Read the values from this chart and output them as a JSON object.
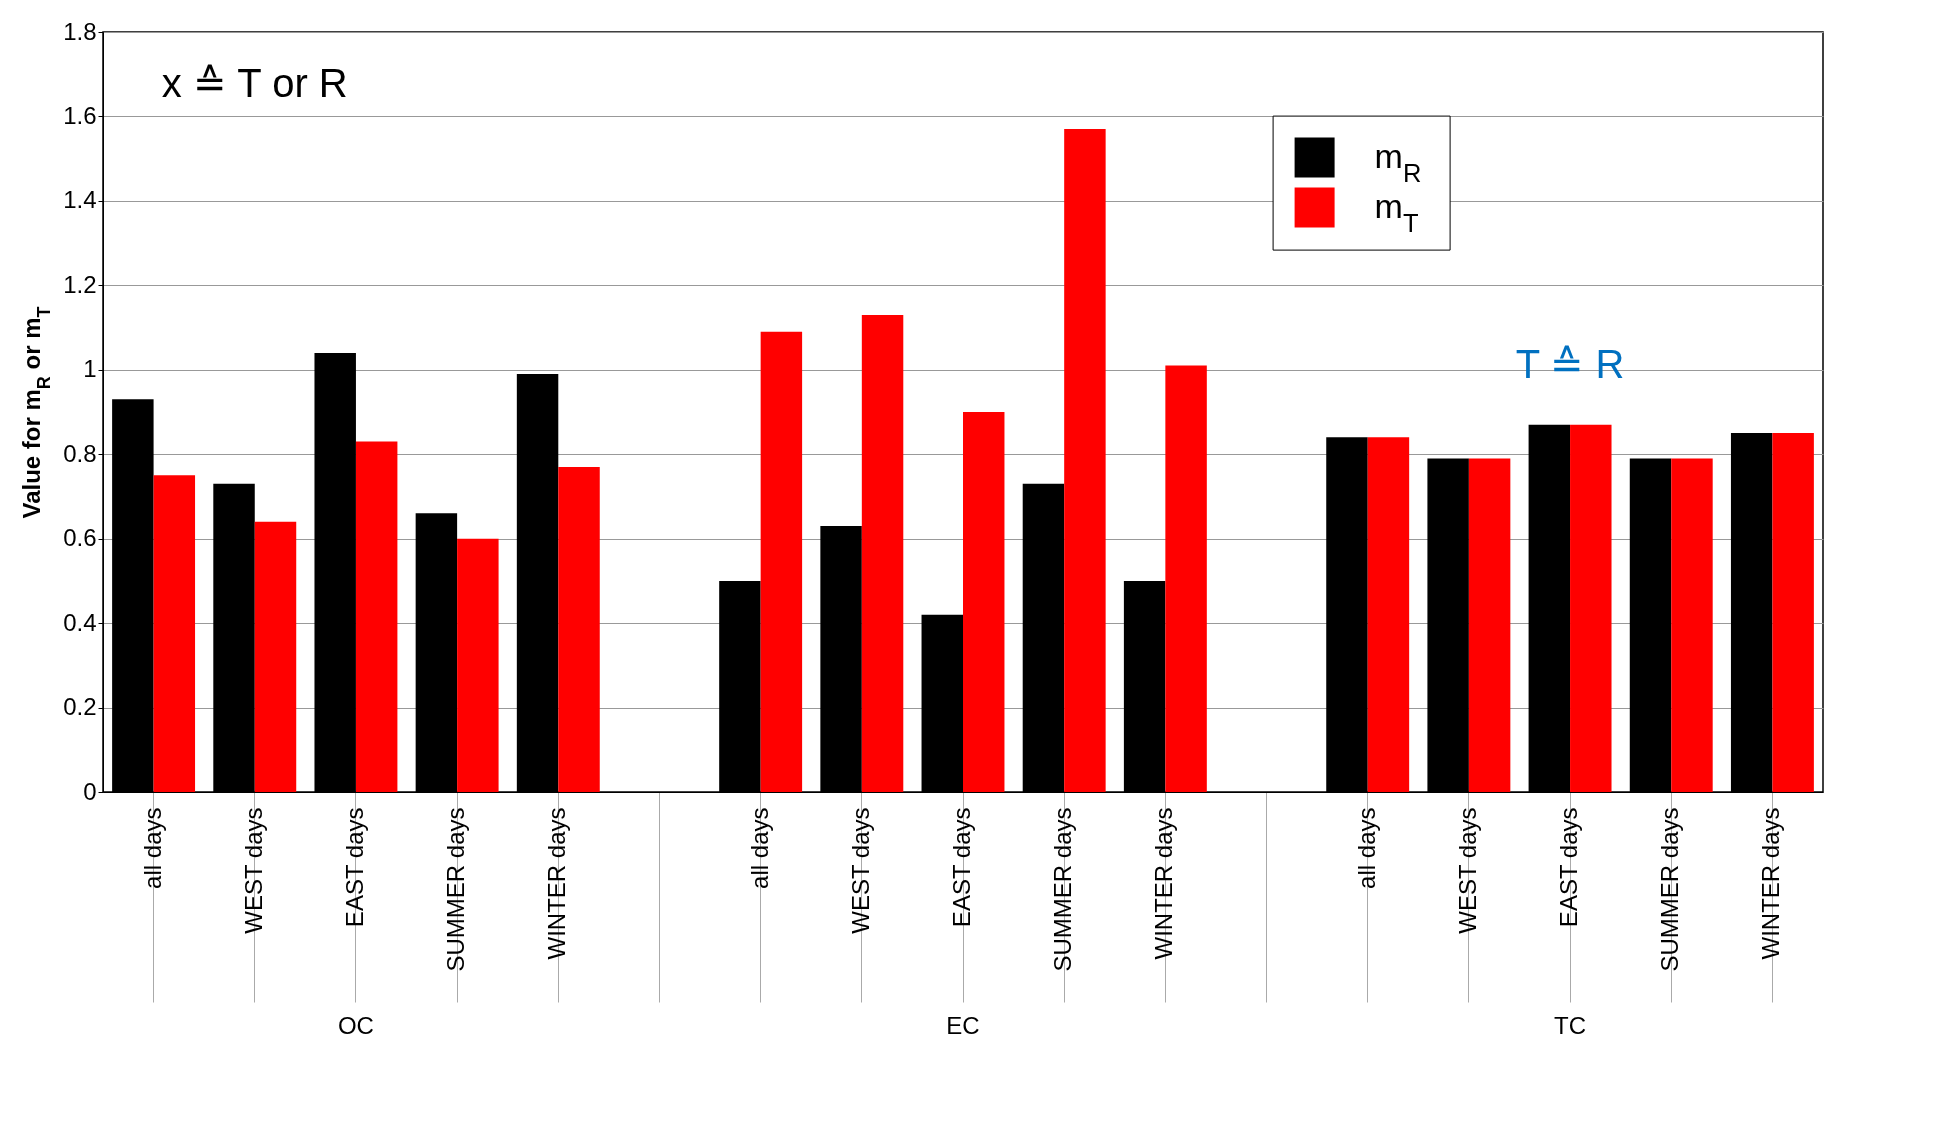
{
  "chart_data": {
    "type": "bar",
    "ylabel": "Value for m$_{R}$ or m$_{T}$",
    "categories": [
      "all days",
      "WEST days",
      "EAST days",
      "SUMMER days",
      "WINTER days",
      null,
      "all days",
      "WEST days",
      "EAST days",
      "SUMMER days",
      "WINTER days",
      null,
      "all days",
      "WEST days",
      "EAST days",
      "SUMMER days",
      "WINTER days"
    ],
    "series": [
      {
        "name": "m$_{R}$",
        "color": "#000000",
        "values": [
          0.93,
          0.73,
          1.04,
          0.66,
          0.99,
          null,
          0.5,
          0.63,
          0.42,
          0.73,
          0.5,
          null,
          0.84,
          0.79,
          0.87,
          0.79,
          0.85
        ]
      },
      {
        "name": "m$_{T}$",
        "color": "#ff0000",
        "values": [
          0.75,
          0.64,
          0.83,
          0.6,
          0.77,
          null,
          1.09,
          1.13,
          0.9,
          1.57,
          1.01,
          null,
          0.84,
          0.79,
          0.87,
          0.79,
          0.85
        ]
      }
    ],
    "ylim": [
      0,
      1.8
    ],
    "yticks": [
      0,
      0.2,
      0.4,
      0.6,
      0.8,
      1,
      1.2,
      1.4,
      1.6,
      1.8
    ],
    "grid": "y",
    "legend": "top right",
    "annotations": [
      "x ≙ T or R",
      "T ≙ R",
      "OC",
      "EC",
      "TC"
    ]
  }
}
